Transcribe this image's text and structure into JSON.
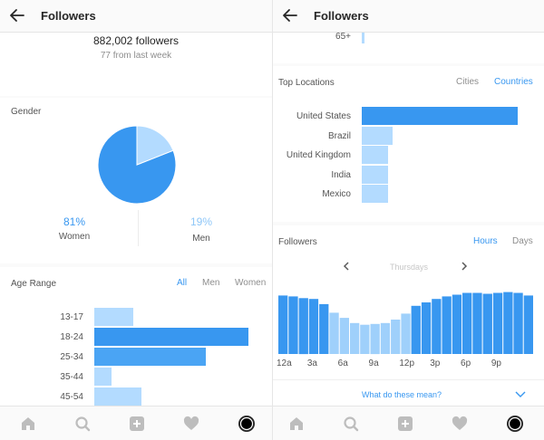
{
  "left": {
    "header": {
      "title": "Followers"
    },
    "summary": {
      "count": "882,002 followers",
      "delta": "77 from last week"
    },
    "gender": {
      "title": "Gender",
      "women": {
        "pct": "81%",
        "label": "Women",
        "value": 81,
        "color": "#3897f0"
      },
      "men": {
        "pct": "19%",
        "label": "Men",
        "value": 19,
        "color": "#b3dbff"
      }
    },
    "age": {
      "title": "Age Range",
      "filters": [
        "All",
        "Men",
        "Women"
      ],
      "active_filter": "All",
      "rows": [
        {
          "label": "13-17",
          "value": 9
        },
        {
          "label": "18-24",
          "value": 36
        },
        {
          "label": "25-34",
          "value": 26
        },
        {
          "label": "35-44",
          "value": 4
        },
        {
          "label": "45-54",
          "value": 11
        }
      ]
    },
    "nav": [
      "home-icon",
      "search-icon",
      "add-icon",
      "heart-icon",
      "profile-icon"
    ]
  },
  "right": {
    "header": {
      "title": "Followers"
    },
    "age_tail": {
      "label": "65+"
    },
    "locations": {
      "title": "Top Locations",
      "tabs": [
        "Cities",
        "Countries"
      ],
      "active_tab": "Countries",
      "rows": [
        {
          "label": "United States",
          "value": 100
        },
        {
          "label": "Brazil",
          "value": 20
        },
        {
          "label": "United Kingdom",
          "value": 17
        },
        {
          "label": "India",
          "value": 17
        },
        {
          "label": "Mexico",
          "value": 17
        }
      ]
    },
    "followers_time": {
      "title": "Followers",
      "tabs": [
        "Hours",
        "Days"
      ],
      "active_tab": "Hours",
      "day": "Thursdays",
      "x_ticks": [
        "12a",
        "3a",
        "6a",
        "9a",
        "12p",
        "3p",
        "6p",
        "9p"
      ],
      "values": [
        68,
        67,
        65,
        64,
        58,
        48,
        42,
        36,
        34,
        35,
        36,
        40,
        47,
        56,
        60,
        64,
        67,
        69,
        71,
        71,
        70,
        71,
        72,
        71,
        68
      ],
      "link": "What do these mean?"
    },
    "nav": [
      "home-icon",
      "search-icon",
      "add-icon",
      "heart-icon",
      "profile-icon"
    ]
  },
  "colors": {
    "accent": "#3897f0",
    "light_bar": "#b3dbff",
    "dark_bar": "#3897f0",
    "mid_bar": "#4aa4f4"
  }
}
